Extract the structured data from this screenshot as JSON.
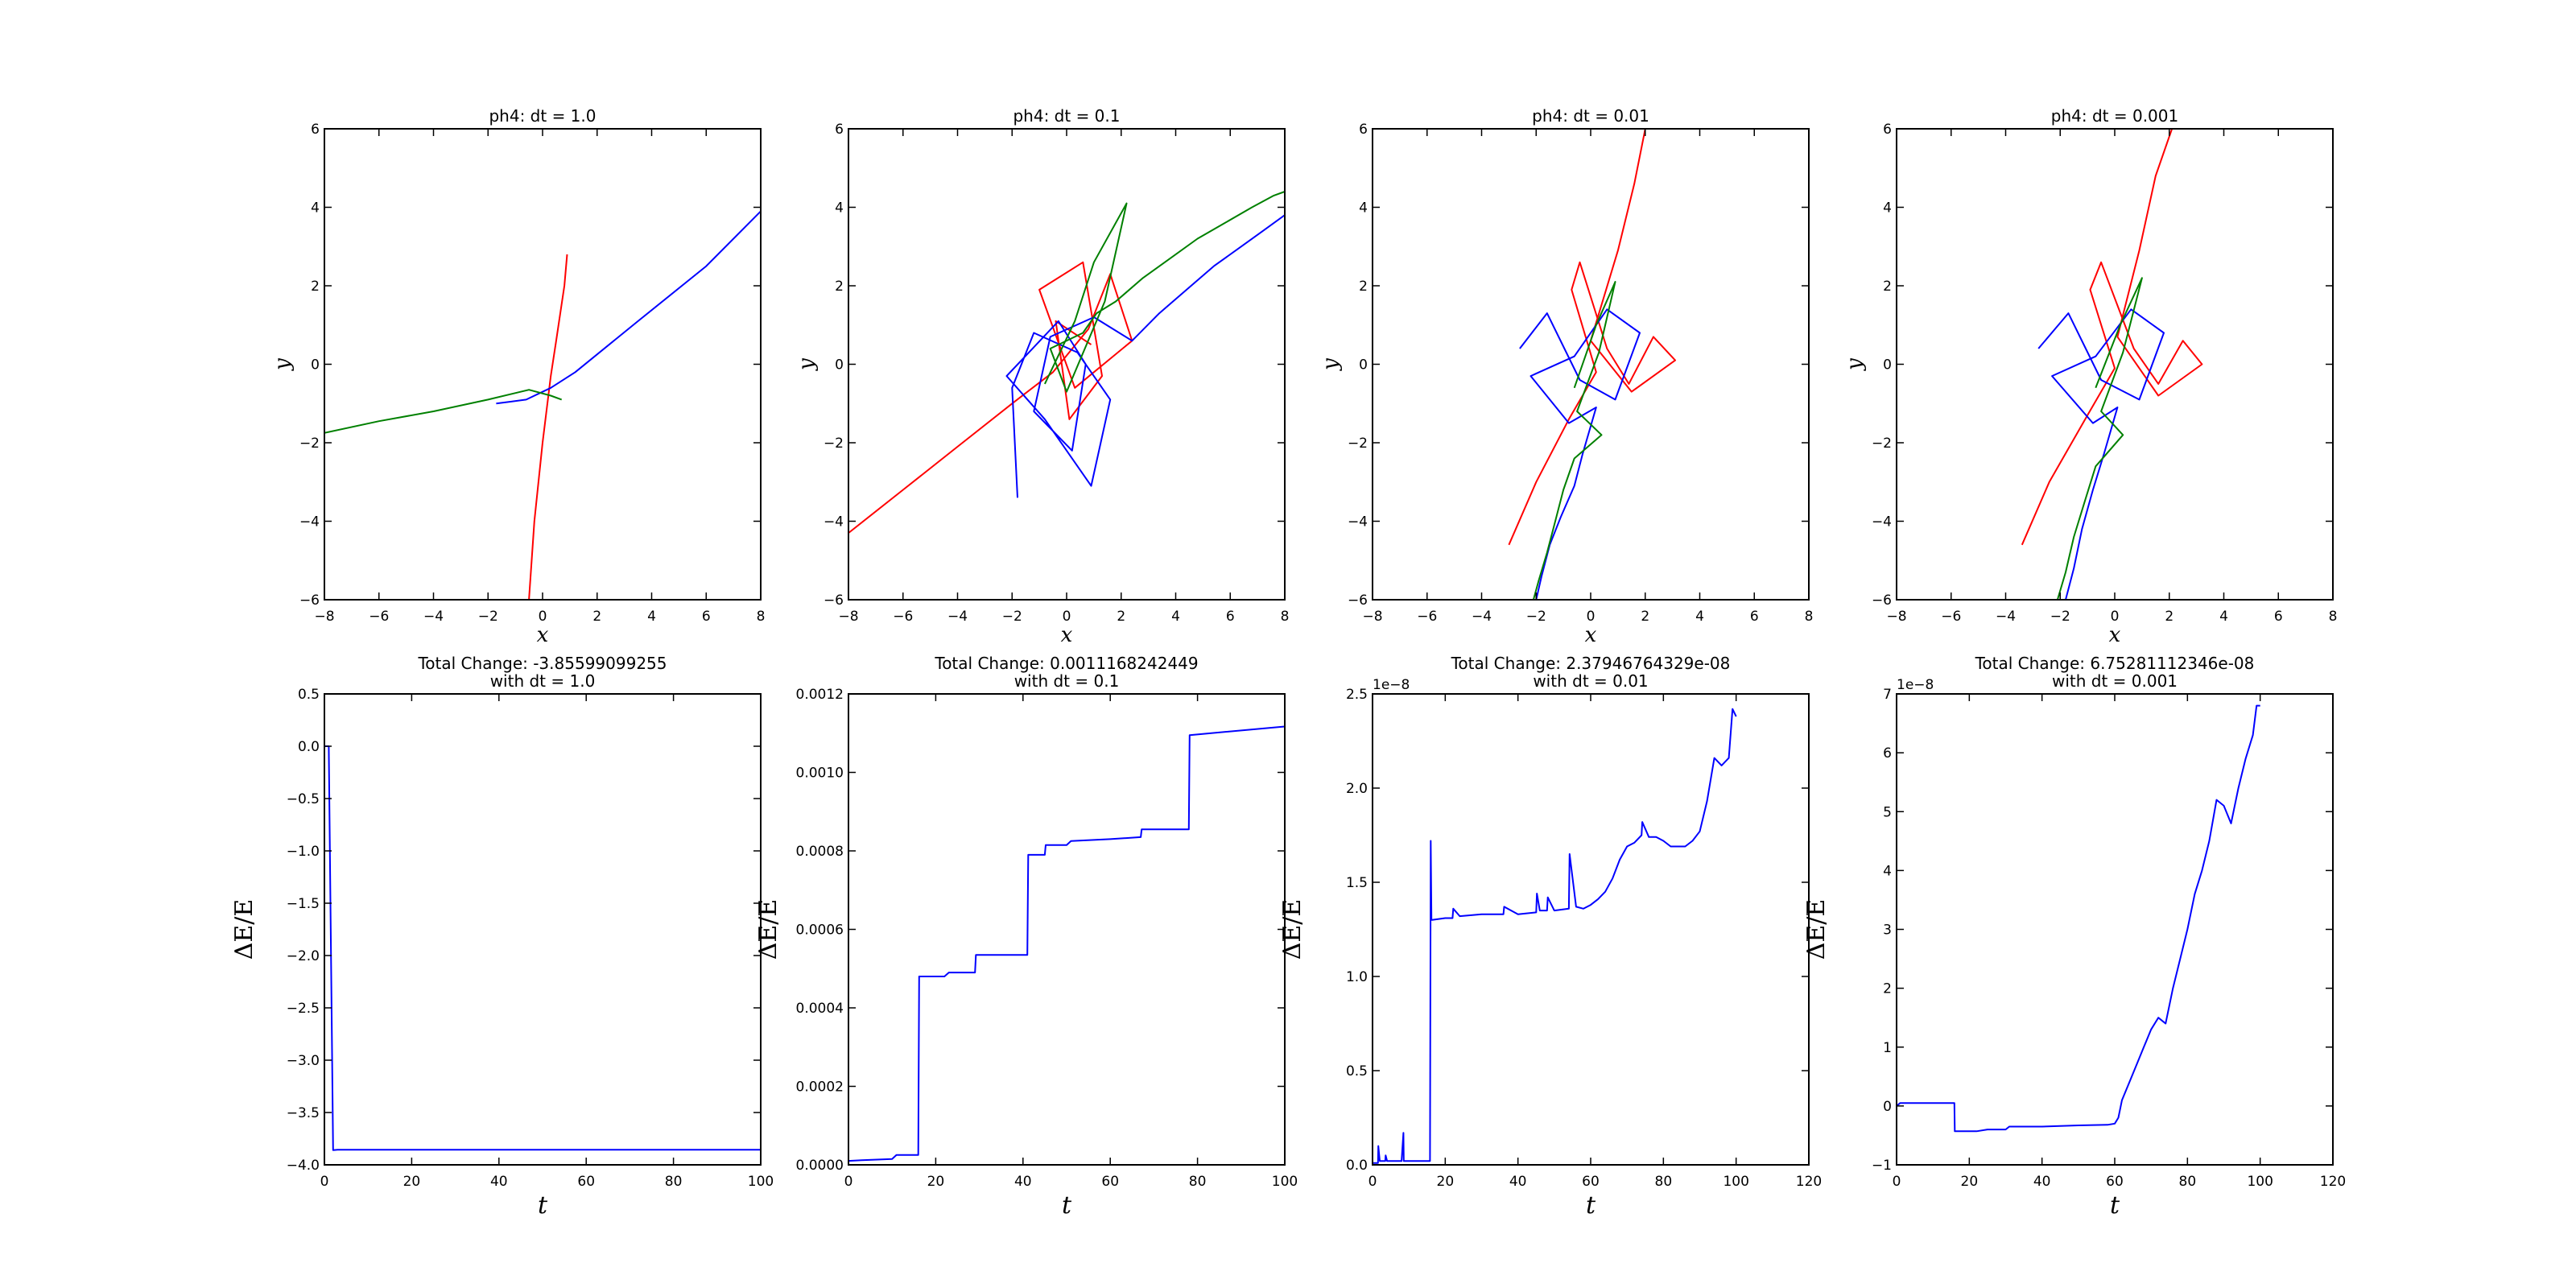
{
  "chart_data": [
    {
      "type": "line",
      "panel": "orbit",
      "title": "ph4: dt = 1.0",
      "xlabel": "x",
      "ylabel": "y",
      "xlim": [
        -8,
        8
      ],
      "ylim": [
        -6,
        6
      ],
      "xticks": [
        -8,
        -6,
        -4,
        -2,
        0,
        2,
        4,
        6,
        8
      ],
      "yticks": [
        -6,
        -4,
        -2,
        0,
        2,
        4,
        6
      ],
      "series": [
        {
          "color": "#ff0000",
          "x": [
            -0.5,
            -0.3,
            0.0,
            0.3,
            0.5,
            0.8,
            0.9
          ],
          "y": [
            -6.0,
            -4.0,
            -2.0,
            -0.3,
            0.6,
            2.0,
            2.8
          ]
        },
        {
          "color": "#0000ff",
          "x": [
            -1.7,
            -0.6,
            0.3,
            1.2,
            3.5,
            6.0,
            8.0
          ],
          "y": [
            -1.0,
            -0.9,
            -0.6,
            -0.2,
            1.1,
            2.5,
            3.9
          ]
        },
        {
          "color": "#008000",
          "x": [
            -8.0,
            -6.0,
            -4.0,
            -2.0,
            -0.5,
            0.3,
            0.7
          ],
          "y": [
            -1.75,
            -1.45,
            -1.2,
            -0.9,
            -0.65,
            -0.8,
            -0.9
          ]
        }
      ]
    },
    {
      "type": "line",
      "panel": "orbit",
      "title": "ph4: dt = 0.1",
      "xlabel": "x",
      "ylabel": "y",
      "xlim": [
        -8,
        8
      ],
      "ylim": [
        -6,
        6
      ],
      "xticks": [
        -8,
        -6,
        -4,
        -2,
        0,
        2,
        4,
        6,
        8
      ],
      "yticks": [
        -6,
        -4,
        -2,
        0,
        2,
        4,
        6
      ],
      "series": [
        {
          "color": "#ff0000",
          "x": [
            -8.0,
            -6.0,
            -4.0,
            -2.0,
            -0.5,
            0.8,
            1.6,
            2.4,
            0.3,
            -1.0,
            0.6,
            1.3,
            0.1,
            -0.4,
            0.9
          ],
          "y": [
            -4.3,
            -3.2,
            -2.1,
            -1.0,
            -0.2,
            0.9,
            2.3,
            0.6,
            -0.6,
            1.9,
            2.6,
            -0.3,
            -1.4,
            1.1,
            0.5
          ]
        },
        {
          "color": "#0000ff",
          "x": [
            -1.8,
            -2.0,
            -1.2,
            0.4,
            1.6,
            0.9,
            -0.8,
            -2.2,
            -0.3,
            0.7,
            0.2,
            -1.2,
            -0.6,
            1.0,
            2.4,
            3.4,
            4.4,
            5.4,
            6.4,
            7.2,
            8.0
          ],
          "y": [
            -3.4,
            -0.6,
            0.8,
            0.3,
            -0.9,
            -3.1,
            -1.4,
            -0.3,
            1.1,
            0.0,
            -2.2,
            -1.2,
            0.7,
            1.2,
            0.6,
            1.3,
            1.9,
            2.5,
            3.0,
            3.4,
            3.8
          ]
        },
        {
          "color": "#008000",
          "x": [
            -0.8,
            0.3,
            1.0,
            2.2,
            1.4,
            0.0,
            -0.6,
            0.6,
            1.1,
            1.8,
            2.8,
            3.8,
            4.8,
            5.8,
            6.8,
            7.6,
            8.0
          ],
          "y": [
            -0.5,
            1.1,
            2.6,
            4.1,
            1.6,
            -0.7,
            0.4,
            0.8,
            1.3,
            1.6,
            2.2,
            2.7,
            3.2,
            3.6,
            4.0,
            4.3,
            4.4
          ]
        }
      ]
    },
    {
      "type": "line",
      "panel": "orbit",
      "title": "ph4: dt = 0.01",
      "xlabel": "x",
      "ylabel": "y",
      "xlim": [
        -8,
        8
      ],
      "ylim": [
        -6,
        6
      ],
      "xticks": [
        -8,
        -6,
        -4,
        -2,
        0,
        2,
        4,
        6,
        8
      ],
      "yticks": [
        -6,
        -4,
        -2,
        0,
        2,
        4,
        6
      ],
      "series": [
        {
          "color": "#ff0000",
          "x": [
            -3.0,
            -2.0,
            -0.8,
            0.2,
            -0.7,
            -0.4,
            0.6,
            1.4,
            2.3,
            3.1,
            1.5,
            0.0,
            1.0,
            1.6,
            2.0
          ],
          "y": [
            -4.6,
            -3.0,
            -1.4,
            -0.2,
            1.9,
            2.6,
            0.4,
            -0.5,
            0.7,
            0.1,
            -0.7,
            0.6,
            2.9,
            4.6,
            6.0
          ]
        },
        {
          "color": "#0000ff",
          "x": [
            -2.6,
            -1.6,
            -0.4,
            0.9,
            1.8,
            0.6,
            -0.6,
            -2.2,
            -0.8,
            0.2,
            -0.3,
            -0.6,
            -1.1,
            -1.5,
            -1.8,
            -2.0
          ],
          "y": [
            0.4,
            1.3,
            -0.4,
            -0.9,
            0.8,
            1.4,
            0.2,
            -0.3,
            -1.5,
            -1.1,
            -2.3,
            -3.1,
            -3.9,
            -4.6,
            -5.4,
            -6.0
          ]
        },
        {
          "color": "#008000",
          "x": [
            -0.6,
            0.2,
            0.9,
            0.3,
            -0.5,
            0.4,
            -0.6,
            -1.0,
            -1.3,
            -1.6,
            -1.9,
            -2.1
          ],
          "y": [
            -0.6,
            1.0,
            2.1,
            0.3,
            -1.2,
            -1.8,
            -2.4,
            -3.2,
            -4.0,
            -4.8,
            -5.5,
            -6.0
          ]
        }
      ]
    },
    {
      "type": "line",
      "panel": "orbit",
      "title": "ph4: dt = 0.001",
      "xlabel": "x",
      "ylabel": "y",
      "xlim": [
        -8,
        8
      ],
      "ylim": [
        -6,
        6
      ],
      "xticks": [
        -8,
        -6,
        -4,
        -2,
        0,
        2,
        4,
        6,
        8
      ],
      "yticks": [
        -6,
        -4,
        -2,
        0,
        2,
        4,
        6
      ],
      "series": [
        {
          "color": "#ff0000",
          "x": [
            -3.4,
            -2.4,
            -1.0,
            0.0,
            -0.9,
            -0.5,
            0.7,
            1.6,
            2.5,
            3.2,
            1.6,
            0.1,
            0.9,
            1.5,
            2.1
          ],
          "y": [
            -4.6,
            -3.0,
            -1.3,
            -0.1,
            1.9,
            2.6,
            0.4,
            -0.5,
            0.6,
            0.0,
            -0.8,
            0.7,
            2.9,
            4.8,
            6.0
          ]
        },
        {
          "color": "#0000ff",
          "x": [
            -2.8,
            -1.7,
            -0.5,
            0.9,
            1.8,
            0.6,
            -0.7,
            -2.3,
            -0.8,
            0.1,
            -0.4,
            -0.8,
            -1.2,
            -1.5,
            -1.8
          ],
          "y": [
            0.4,
            1.3,
            -0.4,
            -0.9,
            0.8,
            1.4,
            0.2,
            -0.3,
            -1.5,
            -1.1,
            -2.3,
            -3.2,
            -4.2,
            -5.2,
            -6.0
          ]
        },
        {
          "color": "#008000",
          "x": [
            -0.7,
            0.2,
            1.0,
            0.3,
            -0.5,
            0.3,
            -0.7,
            -1.1,
            -1.5,
            -1.8,
            -2.1
          ],
          "y": [
            -0.6,
            1.0,
            2.2,
            0.3,
            -1.2,
            -1.8,
            -2.6,
            -3.5,
            -4.4,
            -5.3,
            -6.0
          ]
        }
      ]
    },
    {
      "type": "line",
      "panel": "energy",
      "title": "Total Change: -3.85599099255",
      "subtitle": "with dt = 1.0",
      "xlabel": "t",
      "ylabel": "ΔE/E",
      "xlim": [
        0,
        100
      ],
      "ylim": [
        -4.0,
        0.5
      ],
      "xticks": [
        0,
        20,
        40,
        60,
        80,
        100
      ],
      "yticks": [
        -4.0,
        -3.5,
        -3.0,
        -2.5,
        -2.0,
        -1.5,
        -1.0,
        -0.5,
        0.0,
        0.5
      ],
      "ytick_labels": [
        "−4.0",
        "−3.5",
        "−3.0",
        "−2.5",
        "−2.0",
        "−1.5",
        "−1.0",
        "−0.5",
        "0.0",
        "0.5"
      ],
      "offset_label": "",
      "series": [
        {
          "color": "#0000ff",
          "x": [
            0,
            1,
            2,
            3,
            50,
            100
          ],
          "y": [
            0.0,
            0.0,
            -3.86,
            -3.856,
            -3.856,
            -3.856
          ]
        }
      ]
    },
    {
      "type": "line",
      "panel": "energy",
      "title": "Total Change: 0.0011168242449",
      "subtitle": "with dt = 0.1",
      "xlabel": "t",
      "ylabel": "ΔE/E",
      "xlim": [
        0,
        100
      ],
      "ylim": [
        0,
        0.0012
      ],
      "xticks": [
        0,
        20,
        40,
        60,
        80,
        100
      ],
      "yticks": [
        0,
        0.0002,
        0.0004,
        0.0006,
        0.0008,
        0.001,
        0.0012
      ],
      "ytick_labels": [
        "0.0000",
        "0.0002",
        "0.0004",
        "0.0006",
        "0.0008",
        "0.0010",
        "0.0012"
      ],
      "offset_label": "",
      "series": [
        {
          "color": "#0000ff",
          "x": [
            0,
            3,
            10,
            11,
            16,
            16.2,
            22,
            23,
            29,
            29.2,
            41,
            41.2,
            45,
            45.2,
            50,
            51,
            60,
            67,
            67.2,
            78,
            78.2,
            100
          ],
          "y": [
            1e-05,
            1.2e-05,
            1.5e-05,
            2.5e-05,
            2.5e-05,
            0.00048,
            0.00048,
            0.00049,
            0.00049,
            0.000535,
            0.000535,
            0.00079,
            0.00079,
            0.000815,
            0.000815,
            0.000825,
            0.00083,
            0.000835,
            0.000855,
            0.000855,
            0.001095,
            0.001117
          ]
        }
      ]
    },
    {
      "type": "line",
      "panel": "energy",
      "title": "Total Change: 2.37946764329e-08",
      "subtitle": "with dt = 0.01",
      "xlabel": "t",
      "ylabel": "ΔE/E",
      "xlim": [
        0,
        120
      ],
      "ylim": [
        0,
        2.5
      ],
      "xticks": [
        0,
        20,
        40,
        60,
        80,
        100,
        120
      ],
      "yticks": [
        0,
        0.5,
        1.0,
        1.5,
        2.0,
        2.5
      ],
      "ytick_labels": [
        "0.0",
        "0.5",
        "1.0",
        "1.5",
        "2.0",
        "2.5"
      ],
      "offset_label": "1e−8",
      "series": [
        {
          "color": "#0000ff",
          "x": [
            0,
            1.5,
            1.6,
            2,
            3.5,
            3.6,
            4,
            6,
            8,
            8.5,
            8.6,
            9,
            12,
            15.8,
            16,
            16.2,
            16.4,
            20,
            22,
            22.2,
            24,
            30,
            36,
            36.2,
            40,
            45,
            45.2,
            46,
            48,
            48.2,
            50,
            54,
            54.2,
            56,
            58,
            60,
            62,
            64,
            66,
            68,
            70,
            72,
            74,
            74.2,
            76,
            78,
            80,
            82,
            84,
            86,
            88,
            90,
            92,
            94,
            96,
            98,
            99,
            100
          ],
          "y": [
            0.01,
            0.01,
            0.1,
            0.02,
            0.02,
            0.05,
            0.02,
            0.02,
            0.02,
            0.17,
            0.02,
            0.02,
            0.02,
            0.02,
            1.72,
            1.3,
            1.3,
            1.31,
            1.31,
            1.36,
            1.32,
            1.33,
            1.33,
            1.37,
            1.33,
            1.34,
            1.44,
            1.35,
            1.35,
            1.42,
            1.35,
            1.36,
            1.65,
            1.37,
            1.36,
            1.38,
            1.41,
            1.45,
            1.52,
            1.62,
            1.69,
            1.71,
            1.75,
            1.82,
            1.74,
            1.74,
            1.72,
            1.69,
            1.69,
            1.69,
            1.72,
            1.77,
            1.93,
            2.16,
            2.12,
            2.16,
            2.42,
            2.38
          ]
        }
      ]
    },
    {
      "type": "line",
      "panel": "energy",
      "title": "Total Change: 6.75281112346e-08",
      "subtitle": "with dt = 0.001",
      "xlabel": "t",
      "ylabel": "ΔE/E",
      "xlim": [
        0,
        120
      ],
      "ylim": [
        -1,
        7
      ],
      "xticks": [
        0,
        20,
        40,
        60,
        80,
        100,
        120
      ],
      "yticks": [
        -1,
        0,
        1,
        2,
        3,
        4,
        5,
        6,
        7
      ],
      "ytick_labels": [
        "−1",
        "0",
        "1",
        "2",
        "3",
        "4",
        "5",
        "6",
        "7"
      ],
      "offset_label": "1e−8",
      "series": [
        {
          "color": "#0000ff",
          "x": [
            0,
            1,
            2,
            10,
            15.9,
            16,
            22,
            25,
            30,
            31,
            40,
            50,
            58,
            60,
            61,
            62,
            64,
            66,
            68,
            70,
            72,
            74,
            76,
            78,
            80,
            82,
            84,
            86,
            88,
            90,
            92,
            94,
            96,
            98,
            99,
            100
          ],
          "y": [
            0.0,
            0.05,
            0.05,
            0.05,
            0.05,
            -0.43,
            -0.43,
            -0.4,
            -0.4,
            -0.35,
            -0.35,
            -0.33,
            -0.32,
            -0.3,
            -0.2,
            0.1,
            0.4,
            0.7,
            1.0,
            1.3,
            1.5,
            1.4,
            2.0,
            2.5,
            3.0,
            3.6,
            4.0,
            4.5,
            5.2,
            5.1,
            4.8,
            5.4,
            5.9,
            6.3,
            6.8,
            6.8
          ]
        }
      ]
    }
  ]
}
